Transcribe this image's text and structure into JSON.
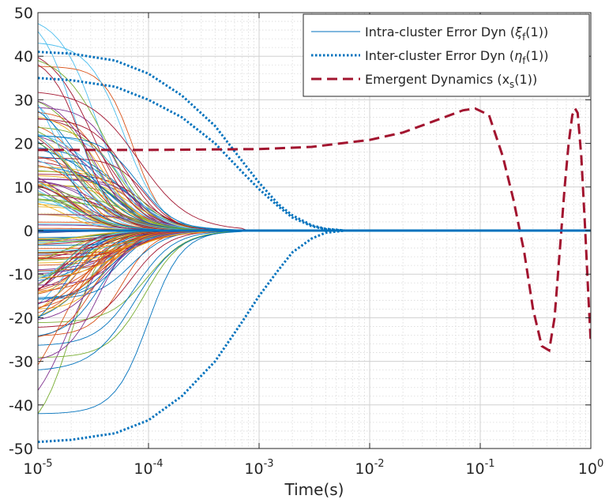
{
  "chart_data": {
    "type": "line",
    "title": "",
    "xlabel": "Time(s)",
    "ylabel": "",
    "xscale": "log",
    "xlim": [
      1e-05,
      1
    ],
    "ylim": [
      -50,
      50
    ],
    "grid": "on (major and minor)",
    "legend_location": "top-right",
    "x_ticks": [
      {
        "base": "10",
        "exp": "-5",
        "value": 1e-05
      },
      {
        "base": "10",
        "exp": "-4",
        "value": 0.0001
      },
      {
        "base": "10",
        "exp": "-3",
        "value": 0.001
      },
      {
        "base": "10",
        "exp": "-2",
        "value": 0.01
      },
      {
        "base": "10",
        "exp": "-1",
        "value": 0.1
      },
      {
        "base": "10",
        "exp": "0",
        "value": 1
      }
    ],
    "y_ticks": [
      50,
      40,
      30,
      20,
      10,
      0,
      -10,
      -20,
      -30,
      -40,
      -50
    ],
    "y_tick_labels": [
      "50",
      "40",
      "30",
      "20",
      "10",
      "0",
      "-10",
      "-20",
      "-30",
      "-40",
      "-50"
    ],
    "legend": [
      {
        "prefix": "Intra-cluster Error Dyn (",
        "symbol": "ξ",
        "sub": "f",
        "suffix": "(1))",
        "style": "solid",
        "color": "#0072BD"
      },
      {
        "prefix": "Inter-cluster Error Dyn (",
        "symbol": "η",
        "sub": "f",
        "suffix": "(1))",
        "style": "dotted",
        "color": "#0072BD"
      },
      {
        "prefix": "Emergent Dynamics (x",
        "symbol": "",
        "sub": "s",
        "suffix": "(1))",
        "style": "dashed",
        "color": "#A2142F"
      }
    ],
    "series": [
      {
        "style": "dotted",
        "color": "#0072BD",
        "x": [
          1e-05,
          2e-05,
          5e-05,
          0.0001,
          0.0002,
          0.0004,
          0.0007,
          0.001,
          0.0015,
          0.002,
          0.003,
          0.004,
          0.006,
          0.01,
          1
        ],
        "y": [
          41,
          40.6,
          39,
          36,
          31,
          24,
          16,
          11,
          6,
          3.5,
          1.2,
          0.4,
          0,
          0,
          0
        ]
      },
      {
        "style": "dotted",
        "color": "#0072BD",
        "x": [
          1e-05,
          2e-05,
          5e-05,
          0.0001,
          0.0002,
          0.0004,
          0.0007,
          0.001,
          0.0015,
          0.002,
          0.003,
          0.004,
          0.006,
          0.01,
          1
        ],
        "y": [
          35,
          34.5,
          33,
          30,
          26,
          20,
          13.5,
          9.5,
          5.5,
          3,
          1,
          0.3,
          0,
          0,
          0
        ]
      },
      {
        "style": "dotted",
        "color": "#0072BD",
        "x": [
          1e-05,
          2e-05,
          5e-05,
          0.0001,
          0.0002,
          0.0004,
          0.0007,
          0.001,
          0.0015,
          0.002,
          0.003,
          0.004,
          0.006,
          0.01,
          1
        ],
        "y": [
          -48.5,
          -48,
          -46.5,
          -43.5,
          -38,
          -30,
          -21,
          -15,
          -9,
          -5,
          -1.8,
          -0.5,
          0,
          0,
          0
        ]
      },
      {
        "style": "dashed",
        "color": "#A2142F",
        "x": [
          1e-05,
          0.0001,
          0.001,
          0.003,
          0.01,
          0.02,
          0.04,
          0.07,
          0.09,
          0.12,
          0.16,
          0.2,
          0.25,
          0.3,
          0.36,
          0.42,
          0.47,
          0.53,
          0.58,
          0.63,
          0.68,
          0.72,
          0.76,
          0.82,
          0.89,
          0.95,
          1
        ],
        "y": [
          18.5,
          18.5,
          18.7,
          19.2,
          20.8,
          22.5,
          25.3,
          27.6,
          28,
          26.5,
          17,
          7,
          -5,
          -18,
          -26.5,
          -27.5,
          -20,
          -3,
          10,
          20,
          26.5,
          28,
          27,
          17,
          0,
          -15,
          -26
        ]
      },
      {
        "style": "solid",
        "color": "#0072BD",
        "x": [
          1e-05,
          1
        ],
        "y": [
          0,
          0
        ]
      }
    ],
    "intra_cluster_bundle": {
      "style": "solid thin lines, many colors",
      "count": 160,
      "initial_range": [
        -42,
        47.5
      ],
      "converges_to": 0,
      "convergence_time": 0.0008,
      "colors": [
        "#0072BD",
        "#D95319",
        "#EDB120",
        "#7E2F8E",
        "#77AC30",
        "#4DBEEE",
        "#A2142F"
      ]
    }
  }
}
